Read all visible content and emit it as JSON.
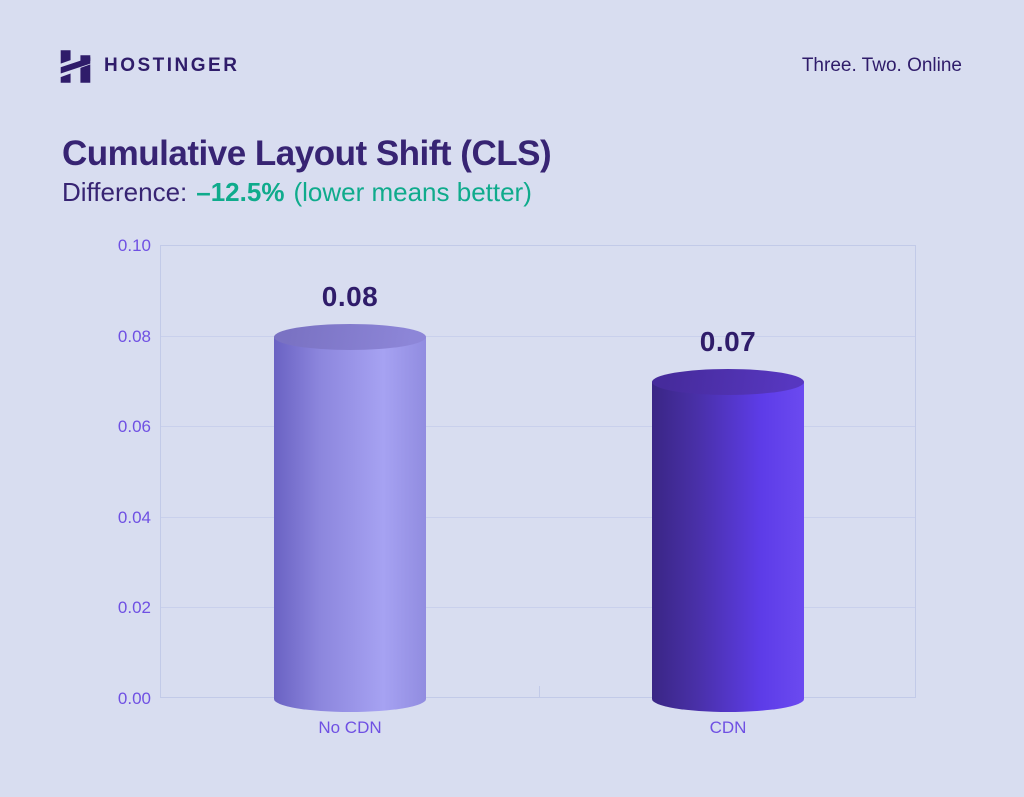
{
  "header": {
    "brand": "HOSTINGER",
    "tagline": "Three. Two. Online",
    "logo_icon": "hostinger-h-logo"
  },
  "title": "Cumulative Layout Shift (CLS)",
  "subtitle": {
    "prefix": "Difference:",
    "value": "–12.5%",
    "note": "(lower means better)"
  },
  "chart_data": {
    "type": "bar",
    "style": "3d-cylinder",
    "categories": [
      "No CDN",
      "CDN"
    ],
    "values": [
      0.08,
      0.07
    ],
    "value_labels": [
      "0.08",
      "0.07"
    ],
    "title": "Cumulative Layout Shift (CLS)",
    "xlabel": "",
    "ylabel": "",
    "ylim": [
      0,
      0.1
    ],
    "ytick_step": 0.02,
    "yticks": [
      "0.10",
      "0.08",
      "0.06",
      "0.04",
      "0.02",
      "0.00"
    ],
    "grid": true,
    "legend": false
  },
  "colors": {
    "background": "#d8ddf0",
    "brand_dark": "#2f1c6a",
    "title_text": "#372473",
    "accent_green": "#0fab8c",
    "axis_label": "#6f50e3",
    "gridline": "#c9d0ec",
    "plot_border": "#c2cae8",
    "value_label": "#2f1c6a",
    "bars": [
      {
        "name": "no-cdn",
        "body": [
          "#6a62c3",
          "#8c86dd",
          "#a6a2f2",
          "#918ce0"
        ],
        "cap": [
          "#7a72c3",
          "#8d86d8"
        ]
      },
      {
        "name": "cdn",
        "body": [
          "#3a2685",
          "#4930a8",
          "#5d3ce8",
          "#6b4af0"
        ],
        "cap": [
          "#462b9c",
          "#5737c0"
        ]
      }
    ]
  }
}
